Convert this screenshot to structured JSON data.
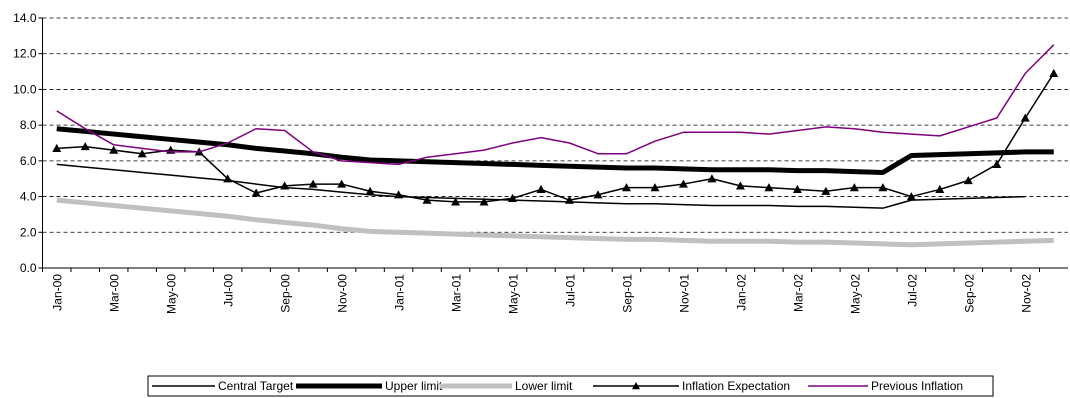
{
  "chart_data": {
    "type": "line",
    "categories": [
      "Jan-00",
      null,
      "Mar-00",
      null,
      "May-00",
      null,
      "Jul-00",
      null,
      "Sep-00",
      null,
      "Nov-00",
      null,
      "Jan-01",
      null,
      "Mar-01",
      null,
      "May-01",
      null,
      "Jul-01",
      null,
      "Sep-01",
      null,
      "Nov-01",
      null,
      "Jan-02",
      null,
      "Mar-02",
      null,
      "May-02",
      null,
      "Jul-02",
      null,
      "Sep-02",
      null,
      "Nov-02",
      null
    ],
    "series": [
      {
        "name": "Central Target",
        "color": "#000000",
        "width": 1.5,
        "values": [
          5.8,
          5.65,
          5.5,
          5.35,
          5.2,
          5.05,
          4.9,
          4.7,
          4.5,
          4.4,
          4.25,
          4.1,
          4.0,
          3.95,
          3.9,
          3.85,
          3.8,
          3.75,
          3.7,
          3.65,
          3.6,
          3.6,
          3.55,
          3.5,
          3.5,
          3.5,
          3.45,
          3.45,
          3.4,
          3.35,
          3.8,
          3.85,
          3.9,
          3.95,
          4.0,
          null
        ]
      },
      {
        "name": "Upper limit",
        "color": "#000000",
        "width": 5,
        "values": [
          7.8,
          7.65,
          7.5,
          7.35,
          7.2,
          7.05,
          6.9,
          6.7,
          6.55,
          6.4,
          6.2,
          6.05,
          6.0,
          5.95,
          5.9,
          5.85,
          5.8,
          5.75,
          5.7,
          5.65,
          5.6,
          5.6,
          5.55,
          5.5,
          5.5,
          5.5,
          5.45,
          5.45,
          5.4,
          5.35,
          6.3,
          6.35,
          6.4,
          6.45,
          6.5,
          6.5
        ]
      },
      {
        "name": "Lower limit",
        "color": "#c0c0c0",
        "width": 5,
        "values": [
          3.8,
          3.65,
          3.5,
          3.35,
          3.2,
          3.05,
          2.9,
          2.7,
          2.55,
          2.4,
          2.2,
          2.05,
          2.0,
          1.95,
          1.9,
          1.85,
          1.8,
          1.75,
          1.7,
          1.65,
          1.6,
          1.6,
          1.55,
          1.5,
          1.5,
          1.5,
          1.45,
          1.45,
          1.4,
          1.35,
          1.3,
          1.35,
          1.4,
          1.45,
          1.5,
          1.55
        ]
      },
      {
        "name": "Inflation Expectation",
        "color": "#000000",
        "width": 1.5,
        "marker": "triangle",
        "values": [
          6.7,
          6.8,
          6.6,
          6.4,
          6.6,
          6.5,
          5.0,
          4.2,
          4.6,
          4.7,
          4.7,
          4.3,
          4.1,
          3.8,
          3.7,
          3.7,
          3.9,
          4.4,
          3.8,
          4.1,
          4.5,
          4.5,
          4.7,
          5.0,
          4.6,
          4.5,
          4.4,
          4.3,
          4.5,
          4.5,
          4.0,
          4.4,
          4.9,
          5.8,
          8.4,
          10.9
        ]
      },
      {
        "name": "Previous Inflation",
        "color": "#800080",
        "width": 1.5,
        "values": [
          8.8,
          7.8,
          6.9,
          6.7,
          6.5,
          6.5,
          7.0,
          7.8,
          7.7,
          6.5,
          6.0,
          5.9,
          5.8,
          6.2,
          6.4,
          6.6,
          7.0,
          7.3,
          7.0,
          6.4,
          6.4,
          7.1,
          7.6,
          7.6,
          7.6,
          7.5,
          7.7,
          7.9,
          7.8,
          7.6,
          7.5,
          7.4,
          7.9,
          8.4,
          10.9,
          12.5
        ]
      }
    ],
    "ylim": [
      0,
      14
    ],
    "yticks": [
      {
        "value": 0,
        "label": "0.0"
      },
      {
        "value": 2,
        "label": "2.0"
      },
      {
        "value": 4,
        "label": "4.0"
      },
      {
        "value": 6,
        "label": "6.0"
      },
      {
        "value": 8,
        "label": "8.0"
      },
      {
        "value": 10,
        "label": "10.0"
      },
      {
        "value": 12,
        "label": "12.0"
      },
      {
        "value": 14,
        "label": "14.0"
      }
    ],
    "grid": true,
    "legend": "bottom"
  }
}
